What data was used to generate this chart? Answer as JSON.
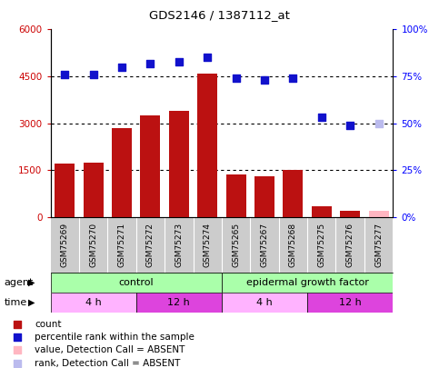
{
  "title": "GDS2146 / 1387112_at",
  "samples": [
    "GSM75269",
    "GSM75270",
    "GSM75271",
    "GSM75272",
    "GSM75273",
    "GSM75274",
    "GSM75265",
    "GSM75267",
    "GSM75268",
    "GSM75275",
    "GSM75276",
    "GSM75277"
  ],
  "bar_values": [
    1700,
    1750,
    2850,
    3250,
    3400,
    4600,
    1350,
    1300,
    1500,
    350,
    200,
    200
  ],
  "bar_absent": [
    false,
    false,
    false,
    false,
    false,
    false,
    false,
    false,
    false,
    false,
    false,
    true
  ],
  "scatter_values": [
    76,
    76,
    80,
    82,
    83,
    85,
    74,
    73,
    74,
    53,
    49,
    50
  ],
  "scatter_absent": [
    false,
    false,
    false,
    false,
    false,
    false,
    false,
    false,
    false,
    false,
    false,
    true
  ],
  "bar_color": "#BB1111",
  "bar_absent_color": "#FFB6C1",
  "scatter_color": "#1111CC",
  "scatter_absent_color": "#BBBBEE",
  "ylim_left": [
    0,
    6000
  ],
  "ylim_right": [
    0,
    100
  ],
  "yticks_left": [
    0,
    1500,
    3000,
    4500,
    6000
  ],
  "ytick_labels_left": [
    "0",
    "1500",
    "3000",
    "4500",
    "6000"
  ],
  "yticks_right": [
    0,
    25,
    50,
    75,
    100
  ],
  "ytick_labels_right": [
    "0%",
    "25%",
    "50%",
    "75%",
    "100%"
  ],
  "hlines": [
    1500,
    3000,
    4500
  ],
  "agent_groups": [
    {
      "label": "control",
      "start": 0,
      "end": 6,
      "color": "#AAFFAA"
    },
    {
      "label": "epidermal growth factor",
      "start": 6,
      "end": 12,
      "color": "#AAFFAA"
    }
  ],
  "time_groups": [
    {
      "label": "4 h",
      "start": 0,
      "end": 3,
      "color": "#FFB3FF"
    },
    {
      "label": "12 h",
      "start": 3,
      "end": 6,
      "color": "#DD44DD"
    },
    {
      "label": "4 h",
      "start": 6,
      "end": 9,
      "color": "#FFB3FF"
    },
    {
      "label": "12 h",
      "start": 9,
      "end": 12,
      "color": "#DD44DD"
    }
  ],
  "legend_items": [
    {
      "label": "count",
      "color": "#BB1111"
    },
    {
      "label": "percentile rank within the sample",
      "color": "#1111CC"
    },
    {
      "label": "value, Detection Call = ABSENT",
      "color": "#FFB6C1"
    },
    {
      "label": "rank, Detection Call = ABSENT",
      "color": "#BBBBEE"
    }
  ],
  "agent_label": "agent",
  "time_label": "time",
  "background_color": "#FFFFFF",
  "sample_bg_color": "#CCCCCC"
}
